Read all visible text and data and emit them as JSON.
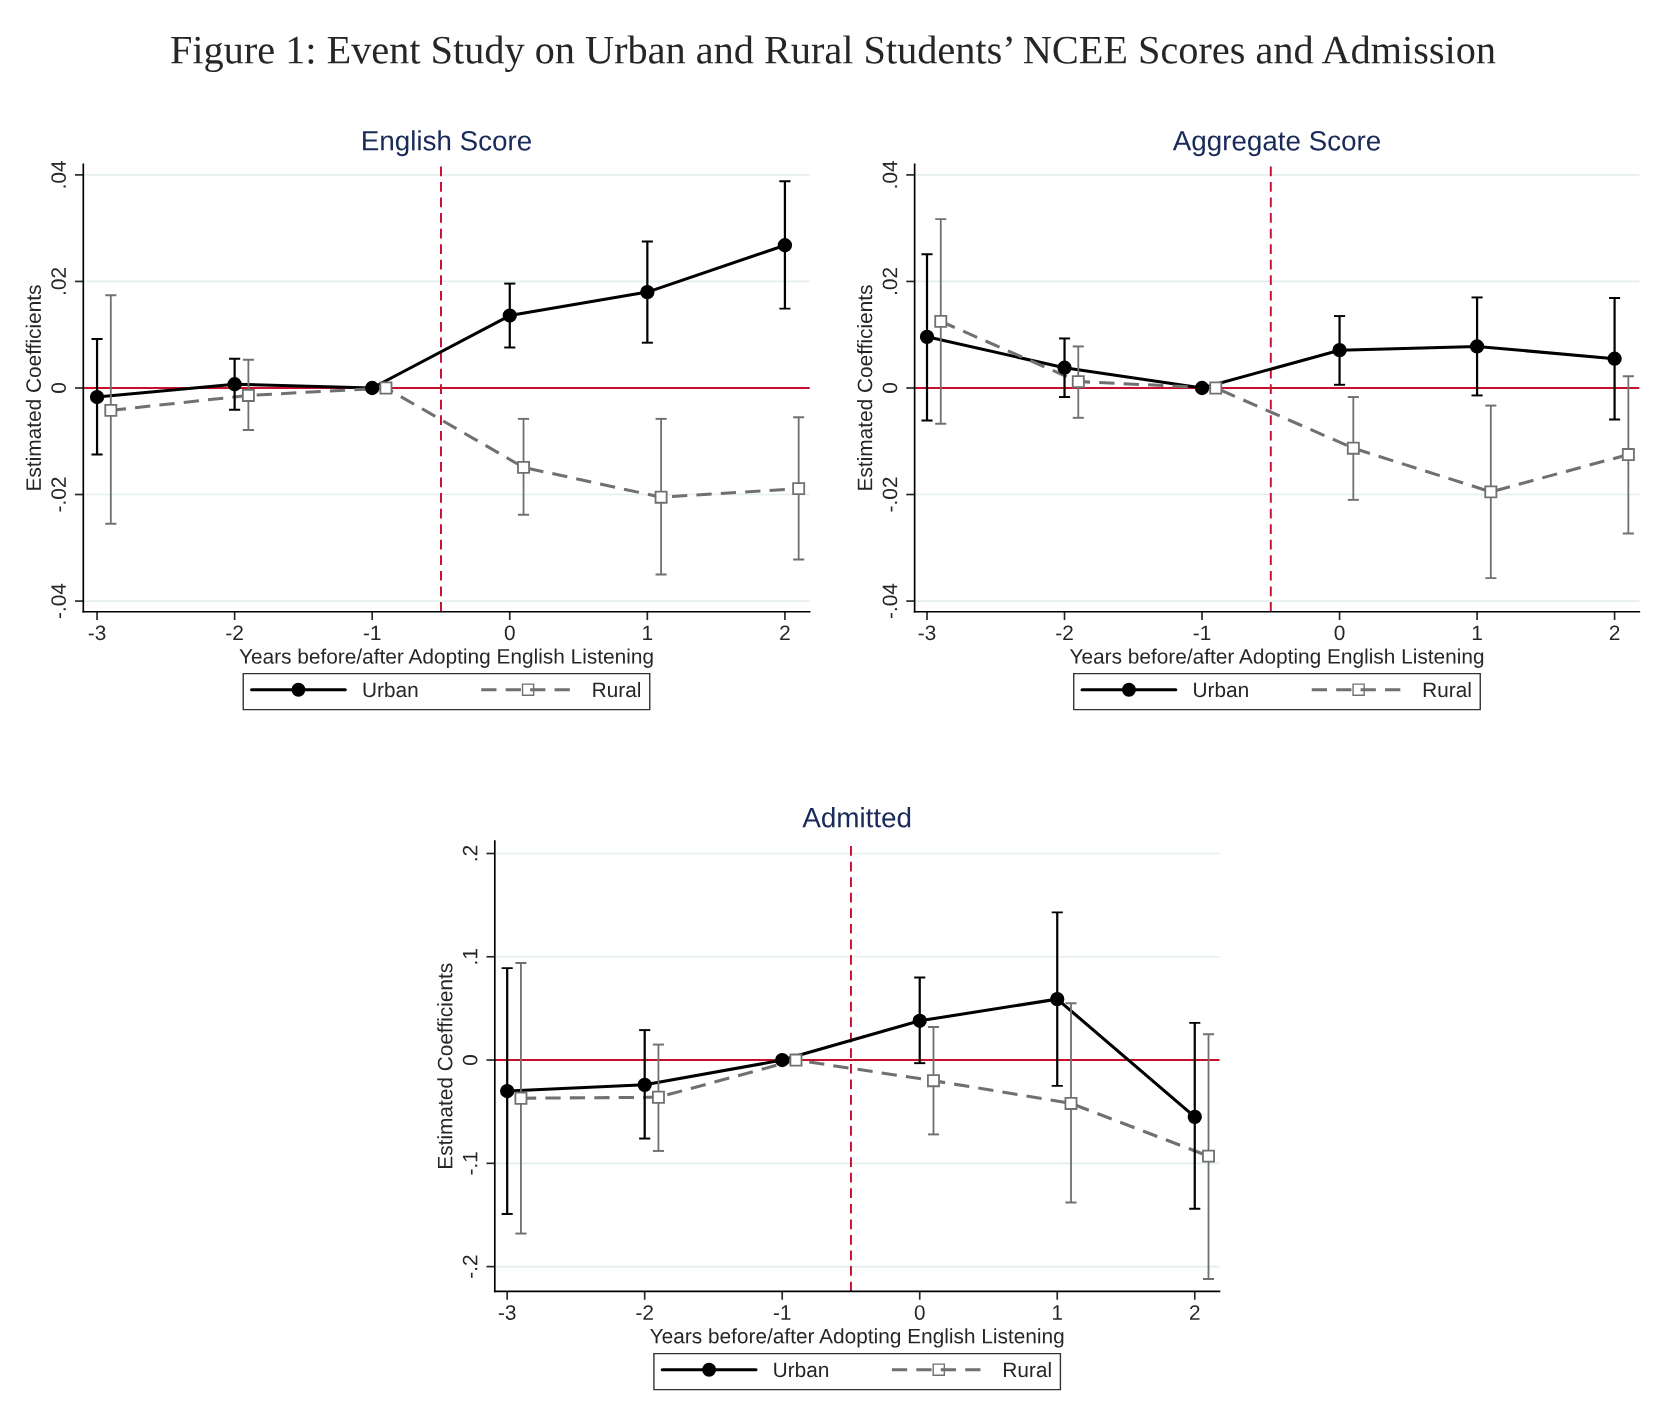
{
  "chart_data": [
    {
      "type": "line",
      "title": "English Score",
      "xlabel": "Years before/after Adopting English Listening",
      "ylabel": "Estimated Coefficients",
      "annotations": [
        "Figure 1: Event Study on Urban and Rural Students’ NCEE Scores and Admission"
      ],
      "xlim": [
        -3.1,
        2.18
      ],
      "xticks": [
        -3,
        -2,
        -1,
        0,
        1,
        2
      ],
      "ylim": [
        -0.042,
        0.042
      ],
      "yticks": [
        {
          "value": -0.04,
          "label": "-.04"
        },
        {
          "value": -0.02,
          "label": "-.02"
        },
        0,
        {
          "value": 0.02,
          "label": ".02"
        },
        {
          "value": 0.04,
          "label": ".04"
        }
      ],
      "grid": "y",
      "legend": "bottom",
      "ref_lines": [
        {
          "axis": "y",
          "value": 0,
          "color": "#c8102e",
          "line_style": "solid"
        },
        {
          "axis": "x",
          "value": -0.5,
          "color": "#c8102e",
          "line_style": "dashed"
        }
      ],
      "series": [
        {
          "name": "Urban",
          "color": "#000000",
          "marker": "circle",
          "line_style": "solid",
          "x": [
            -3,
            -2,
            -1,
            0,
            1,
            2
          ],
          "values": [
            -0.0017,
            0.0007,
            0,
            0.0136,
            0.018,
            0.0268
          ],
          "errors": [
            [
              -0.0125,
              0.0092
            ],
            [
              -0.0041,
              0.0055
            ],
            null,
            [
              0.0076,
              0.0196
            ],
            [
              0.0085,
              0.0275
            ],
            [
              0.0149,
              0.0388
            ]
          ]
        },
        {
          "name": "Rural",
          "color": "#707070",
          "marker": "square",
          "line_style": "dashed",
          "x": [
            -2.9,
            -1.9,
            -0.9,
            0.1,
            1.1,
            2.1
          ],
          "values": [
            -0.0042,
            -0.0014,
            0,
            -0.0149,
            -0.0205,
            -0.0189
          ],
          "errors": [
            [
              -0.0255,
              0.0174
            ],
            [
              -0.0079,
              0.0053
            ],
            null,
            [
              -0.0238,
              -0.0058
            ],
            [
              -0.035,
              -0.0058
            ],
            [
              -0.0322,
              -0.0055
            ]
          ]
        }
      ]
    },
    {
      "type": "line",
      "title": "Aggregate Score",
      "xlabel": "Years before/after Adopting English Listening",
      "ylabel": "Estimated Coefficients",
      "xlim": [
        -3.09,
        2.18
      ],
      "xticks": [
        -3,
        -2,
        -1,
        0,
        1,
        2
      ],
      "ylim": [
        -0.042,
        0.042
      ],
      "yticks": [
        {
          "value": -0.04,
          "label": "-.04"
        },
        {
          "value": -0.02,
          "label": "-.02"
        },
        0,
        {
          "value": 0.02,
          "label": ".02"
        },
        {
          "value": 0.04,
          "label": ".04"
        }
      ],
      "grid": "y",
      "legend": "bottom",
      "ref_lines": [
        {
          "axis": "y",
          "value": 0,
          "color": "#c8102e",
          "line_style": "solid"
        },
        {
          "axis": "x",
          "value": -0.5,
          "color": "#c8102e",
          "line_style": "dashed"
        }
      ],
      "series": [
        {
          "name": "Urban",
          "color": "#000000",
          "marker": "circle",
          "line_style": "solid",
          "x": [
            -3,
            -2,
            -1,
            0,
            1,
            2
          ],
          "values": [
            0.0096,
            0.0038,
            0,
            0.0071,
            0.0078,
            0.0055
          ],
          "errors": [
            [
              -0.0061,
              0.0251
            ],
            [
              -0.0017,
              0.0093
            ],
            null,
            [
              0.0006,
              0.0135
            ],
            [
              -0.0014,
              0.017
            ],
            [
              -0.0059,
              0.0169
            ]
          ]
        },
        {
          "name": "Rural",
          "color": "#707070",
          "marker": "square",
          "line_style": "dashed",
          "x": [
            -2.9,
            -1.9,
            -0.9,
            0.1,
            1.1,
            2.1
          ],
          "values": [
            0.0125,
            0.0012,
            0,
            -0.0113,
            -0.0195,
            -0.0125
          ],
          "errors": [
            [
              -0.0067,
              0.0317
            ],
            [
              -0.0056,
              0.0078
            ],
            null,
            [
              -0.021,
              -0.0017
            ],
            [
              -0.0357,
              -0.0033
            ],
            [
              -0.0273,
              0.0022
            ]
          ]
        }
      ]
    },
    {
      "type": "line",
      "title": "Admitted",
      "xlabel": "Years before/after Adopting English Listening",
      "ylabel": "Estimated Coefficients",
      "xlim": [
        -3.09,
        2.18
      ],
      "xticks": [
        -3,
        -2,
        -1,
        0,
        1,
        2
      ],
      "ylim": [
        -0.224,
        0.212
      ],
      "yticks": [
        {
          "value": -0.2,
          "label": "-.2"
        },
        {
          "value": -0.1,
          "label": "-.1"
        },
        0,
        {
          "value": 0.1,
          "label": ".1"
        },
        {
          "value": 0.2,
          "label": ".2"
        }
      ],
      "grid": "y",
      "legend": "bottom",
      "ref_lines": [
        {
          "axis": "y",
          "value": 0,
          "color": "#c8102e",
          "line_style": "solid"
        },
        {
          "axis": "x",
          "value": -0.5,
          "color": "#c8102e",
          "line_style": "dashed"
        }
      ],
      "series": [
        {
          "name": "Urban",
          "color": "#000000",
          "marker": "circle",
          "line_style": "solid",
          "x": [
            -3,
            -2,
            -1,
            0,
            1,
            2
          ],
          "values": [
            -0.03,
            -0.024,
            0,
            0.038,
            0.059,
            -0.055
          ],
          "errors": [
            [
              -0.149,
              0.089
            ],
            [
              -0.076,
              0.029
            ],
            null,
            [
              -0.003,
              0.08
            ],
            [
              -0.025,
              0.143
            ],
            [
              -0.144,
              0.036
            ]
          ]
        },
        {
          "name": "Rural",
          "color": "#707070",
          "marker": "square",
          "line_style": "dashed",
          "x": [
            -2.9,
            -1.9,
            -0.9,
            0.1,
            1.1,
            2.1
          ],
          "values": [
            -0.037,
            -0.036,
            0,
            -0.02,
            -0.042,
            -0.093
          ],
          "errors": [
            [
              -0.168,
              0.094
            ],
            [
              -0.088,
              0.015
            ],
            null,
            [
              -0.072,
              0.032
            ],
            [
              -0.138,
              0.055
            ],
            [
              -0.212,
              0.025
            ]
          ]
        }
      ]
    }
  ]
}
